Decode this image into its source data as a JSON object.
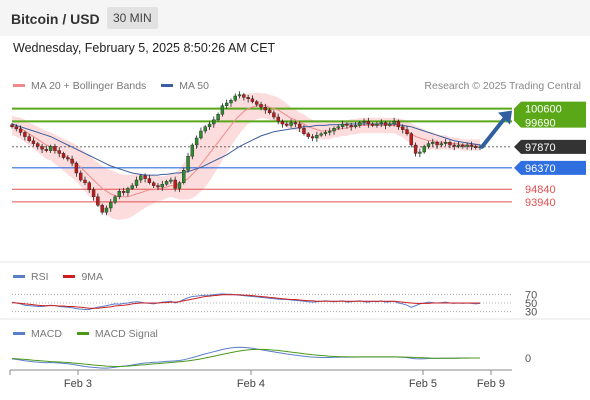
{
  "header": {
    "pair": "Bitcoin / USD",
    "timeframe": "30 MIN"
  },
  "date_text": "Wednesday, February 5, 2025 8:50:26 AM CET",
  "legends": {
    "main": [
      {
        "label": "MA 20 + Bollinger Bands",
        "color": "#f08a8a"
      },
      {
        "label": "MA 50",
        "color": "#3a5f9e"
      }
    ],
    "rsi": [
      {
        "label": "RSI",
        "color": "#5a7ec8"
      },
      {
        "label": "9MA",
        "color": "#cc1f1f"
      }
    ],
    "macd": [
      {
        "label": "MACD",
        "color": "#5a7ec8"
      },
      {
        "label": "MACD Signal",
        "color": "#4a9a1a"
      }
    ]
  },
  "credit": "Research © 2025 Trading Central",
  "colors": {
    "up": "#2e8b2e",
    "down": "#c01a1a",
    "band": "#fbd6d6",
    "ma20": "#f08a8a",
    "ma50": "#3a5f9e",
    "green_level": "#5aa818",
    "blue_level": "#2f6fe0",
    "red_level": "#e05050",
    "current": "#333333"
  },
  "chart_data": [
    {
      "type": "candlestick",
      "title": "Bitcoin / USD",
      "x_ticks": [
        "Feb 3",
        "Feb 4",
        "Feb 5",
        "Feb 9"
      ],
      "ylim": [
        90500,
        101500
      ],
      "levels": [
        {
          "value": 100600,
          "label": "100600",
          "style": "resistance"
        },
        {
          "value": 99690,
          "label": "99690",
          "style": "resistance"
        },
        {
          "value": 97870,
          "label": "97870",
          "style": "current"
        },
        {
          "value": 96370,
          "label": "96370",
          "style": "pivot"
        },
        {
          "value": 94840,
          "label": "94840",
          "style": "support"
        },
        {
          "value": 93940,
          "label": "93940",
          "style": "support"
        }
      ],
      "target_arrow": {
        "from": 97870,
        "to": 100600
      },
      "closes": [
        99300,
        99150,
        98900,
        98600,
        98300,
        98100,
        97900,
        97700,
        97600,
        97900,
        97600,
        97400,
        97100,
        97000,
        96700,
        96000,
        95500,
        95300,
        94800,
        94300,
        93700,
        93200,
        93500,
        93900,
        94300,
        94700,
        94600,
        94900,
        95100,
        95500,
        95800,
        95600,
        95300,
        95100,
        95000,
        95200,
        95400,
        95500,
        94900,
        95300,
        96200,
        97200,
        98000,
        98500,
        99000,
        99300,
        99500,
        99800,
        100200,
        100800,
        101000,
        101200,
        101500,
        101600,
        101400,
        101300,
        101100,
        100900,
        100700,
        100500,
        100300,
        100000,
        99700,
        99500,
        99400,
        99600,
        99500,
        99200,
        98800,
        98600,
        98500,
        98700,
        98800,
        98900,
        99000,
        99200,
        99300,
        99500,
        99400,
        99300,
        99400,
        99600,
        99700,
        99500,
        99400,
        99500,
        99600,
        99400,
        99500,
        99700,
        99300,
        99100,
        98800,
        98000,
        97400,
        97500,
        97900,
        98100,
        98200,
        98000,
        98100,
        98200,
        98000,
        97900,
        98000,
        97900,
        98000,
        97900,
        97800,
        97870
      ],
      "ma20": [
        99400,
        99300,
        99200,
        99000,
        98800,
        98600,
        98400,
        98200,
        98000,
        97900,
        97700,
        97500,
        97300,
        97100,
        96900,
        96700,
        96400,
        96100,
        95800,
        95500,
        95200,
        94900,
        94700,
        94500,
        94400,
        94300,
        94300,
        94300,
        94400,
        94500,
        94600,
        94700,
        94800,
        94800,
        94900,
        94900,
        95000,
        95100,
        95100,
        95200,
        95400,
        95600,
        95900,
        96200,
        96600,
        97000,
        97400,
        97800,
        98200,
        98600,
        99000,
        99400,
        99800,
        100100,
        100400,
        100600,
        100700,
        100800,
        100800,
        100800,
        100700,
        100600,
        100500,
        100300,
        100100,
        99900,
        99800,
        99600,
        99500,
        99300,
        99200,
        99100,
        99000,
        99000,
        99000,
        99100,
        99100,
        99200,
        99200,
        99300,
        99300,
        99400,
        99400,
        99400,
        99400,
        99400,
        99400,
        99400,
        99400,
        99400,
        99300,
        99200,
        99000,
        98800,
        98600,
        98500,
        98400,
        98300,
        98300,
        98200,
        98200,
        98200,
        98100,
        98100,
        98100,
        98000,
        98000,
        98000,
        98000,
        98000
      ],
      "band_half_width": [
        700,
        700,
        750,
        800,
        800,
        850,
        900,
        950,
        1000,
        1000,
        1050,
        1100,
        1150,
        1200,
        1250,
        1300,
        1350,
        1400,
        1450,
        1500,
        1550,
        1600,
        1650,
        1700,
        1700,
        1650,
        1600,
        1550,
        1500,
        1400,
        1300,
        1200,
        1100,
        1000,
        900,
        850,
        800,
        800,
        900,
        1100,
        1300,
        1500,
        1700,
        1800,
        1900,
        2000,
        2000,
        1900,
        1800,
        1700,
        1600,
        1500,
        1400,
        1300,
        1200,
        1100,
        1000,
        950,
        900,
        900,
        900,
        900,
        900,
        900,
        850,
        800,
        750,
        700,
        700,
        650,
        600,
        600,
        600,
        600,
        600,
        550,
        550,
        550,
        550,
        550,
        550,
        550,
        550,
        550,
        550,
        550,
        550,
        550,
        550,
        550,
        600,
        650,
        700,
        750,
        750,
        750,
        700,
        650,
        600,
        550,
        500,
        500,
        450,
        450,
        400,
        400,
        400,
        400,
        400,
        400
      ],
      "ma50": [
        99500,
        99400,
        99300,
        99200,
        99100,
        99000,
        98900,
        98800,
        98700,
        98600,
        98450,
        98300,
        98150,
        98000,
        97850,
        97700,
        97550,
        97400,
        97250,
        97100,
        96950,
        96800,
        96650,
        96500,
        96400,
        96300,
        96200,
        96100,
        96000,
        95950,
        95900,
        95850,
        95850,
        95850,
        95850,
        95900,
        95900,
        95950,
        96000,
        96000,
        96050,
        96100,
        96200,
        96300,
        96400,
        96550,
        96700,
        96850,
        97000,
        97150,
        97300,
        97500,
        97700,
        97900,
        98050,
        98200,
        98350,
        98500,
        98650,
        98750,
        98850,
        98950,
        99000,
        99050,
        99100,
        99150,
        99200,
        99250,
        99300,
        99300,
        99350,
        99400,
        99400,
        99400,
        99450,
        99450,
        99450,
        99450,
        99500,
        99500,
        99500,
        99500,
        99500,
        99500,
        99500,
        99500,
        99500,
        99500,
        99500,
        99500,
        99450,
        99400,
        99350,
        99300,
        99200,
        99100,
        99000,
        98900,
        98800,
        98700,
        98600,
        98500,
        98400,
        98300,
        98250,
        98200,
        98150,
        98100,
        98050,
        98000
      ]
    },
    {
      "type": "line",
      "title": "RSI",
      "y_ticks": [
        30,
        50,
        70
      ],
      "ylim": [
        20,
        80
      ],
      "series": [
        {
          "name": "RSI",
          "values": [
            52,
            50,
            48,
            45,
            44,
            43,
            42,
            42,
            43,
            45,
            44,
            42,
            41,
            40,
            39,
            37,
            36,
            35,
            35,
            38,
            40,
            42,
            44,
            46,
            48,
            47,
            49,
            50,
            52,
            53,
            52,
            50,
            49,
            48,
            50,
            52,
            53,
            54,
            50,
            53,
            58,
            62,
            65,
            66,
            67,
            68,
            68,
            69,
            70,
            71,
            70,
            70,
            69,
            68,
            67,
            66,
            65,
            64,
            63,
            62,
            61,
            60,
            59,
            58,
            58,
            57,
            56,
            55,
            54,
            53,
            52,
            53,
            54,
            55,
            54,
            53,
            54,
            55,
            52,
            53,
            54,
            55,
            53,
            52,
            54,
            53,
            55,
            52,
            53,
            54,
            50,
            48,
            45,
            40,
            44,
            48,
            50,
            52,
            51,
            50,
            51,
            52,
            50,
            49,
            50,
            49,
            50,
            49,
            48,
            49
          ]
        },
        {
          "name": "9MA",
          "values": [
            51,
            50,
            49,
            48,
            47,
            46,
            45,
            44,
            44,
            44,
            44,
            43,
            43,
            42,
            42,
            41,
            40,
            39,
            38,
            38,
            38,
            39,
            40,
            41,
            43,
            44,
            45,
            46,
            48,
            49,
            50,
            50,
            50,
            50,
            50,
            51,
            51,
            52,
            52,
            53,
            55,
            57,
            59,
            61,
            63,
            65,
            66,
            67,
            68,
            69,
            69,
            69,
            69,
            69,
            68,
            68,
            67,
            66,
            65,
            64,
            63,
            62,
            61,
            60,
            59,
            58,
            58,
            57,
            56,
            55,
            55,
            54,
            54,
            54,
            54,
            54,
            54,
            54,
            54,
            54,
            54,
            54,
            54,
            54,
            54,
            54,
            54,
            54,
            54,
            54,
            53,
            52,
            51,
            50,
            49,
            49,
            49,
            49,
            50,
            50,
            50,
            50,
            50,
            50,
            50,
            50,
            50,
            50,
            50,
            50
          ]
        }
      ]
    },
    {
      "type": "line",
      "title": "MACD",
      "y_ticks": [
        0
      ],
      "ylim": [
        -1000,
        1000
      ],
      "series": [
        {
          "name": "MACD",
          "values": [
            -50,
            -80,
            -110,
            -150,
            -180,
            -210,
            -230,
            -250,
            -260,
            -250,
            -260,
            -280,
            -300,
            -320,
            -350,
            -390,
            -430,
            -470,
            -500,
            -520,
            -540,
            -560,
            -560,
            -540,
            -510,
            -480,
            -450,
            -420,
            -390,
            -350,
            -310,
            -280,
            -260,
            -240,
            -230,
            -210,
            -190,
            -170,
            -160,
            -140,
            -100,
            -40,
            20,
            90,
            160,
            230,
            290,
            350,
            410,
            470,
            520,
            560,
            590,
            600,
            590,
            570,
            540,
            500,
            460,
            420,
            380,
            340,
            300,
            260,
            220,
            190,
            160,
            130,
            100,
            70,
            50,
            40,
            30,
            30,
            30,
            40,
            40,
            50,
            50,
            50,
            50,
            60,
            60,
            60,
            60,
            60,
            60,
            60,
            60,
            60,
            50,
            40,
            20,
            -10,
            -40,
            -50,
            -40,
            -30,
            -20,
            -20,
            -10,
            -10,
            -10,
            -10,
            0,
            0,
            0,
            0,
            0,
            0
          ]
        },
        {
          "name": "MACD Signal",
          "values": [
            -30,
            -40,
            -60,
            -80,
            -100,
            -120,
            -140,
            -160,
            -180,
            -200,
            -210,
            -220,
            -240,
            -250,
            -270,
            -290,
            -310,
            -340,
            -360,
            -390,
            -410,
            -430,
            -450,
            -460,
            -470,
            -470,
            -460,
            -450,
            -430,
            -410,
            -390,
            -370,
            -350,
            -330,
            -310,
            -290,
            -270,
            -250,
            -230,
            -210,
            -190,
            -160,
            -130,
            -90,
            -50,
            0,
            50,
            100,
            150,
            200,
            250,
            300,
            350,
            390,
            420,
            450,
            470,
            480,
            480,
            470,
            460,
            440,
            420,
            390,
            360,
            330,
            300,
            270,
            240,
            210,
            180,
            160,
            140,
            120,
            100,
            90,
            80,
            70,
            70,
            60,
            60,
            60,
            60,
            60,
            60,
            60,
            60,
            60,
            60,
            60,
            60,
            50,
            50,
            40,
            30,
            20,
            10,
            0,
            -10,
            -10,
            -10,
            -10,
            -10,
            -10,
            -10,
            -5,
            -5,
            0,
            0,
            0
          ]
        }
      ]
    }
  ]
}
